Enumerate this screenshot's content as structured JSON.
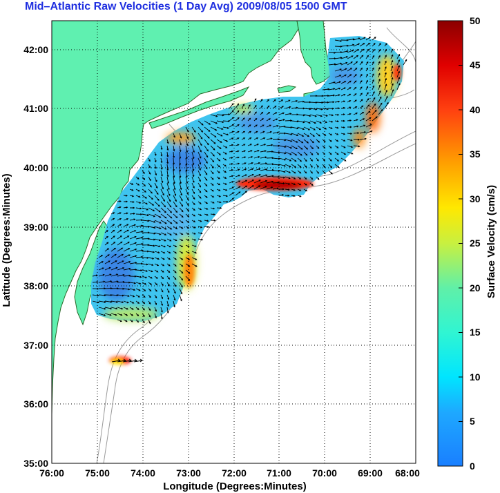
{
  "title": "Mid–Atlantic Raw Velocities (1 Day Avg) 2009/08/05 1500 GMT",
  "xlabel": "Longitude (Degrees:Minutes)",
  "ylabel": "Latitude (Degrees:Minutes)",
  "colorbar_label": "Surface Velocity (cm/s)",
  "x_ticks": [
    "76:00",
    "75:00",
    "74:00",
    "73:00",
    "72:00",
    "71:00",
    "70:00",
    "69:00",
    "68:00"
  ],
  "y_ticks": [
    "35:00",
    "36:00",
    "37:00",
    "38:00",
    "39:00",
    "40:00",
    "41:00",
    "42:00"
  ],
  "colorbar_ticks": [
    "0",
    "5",
    "10",
    "15",
    "20",
    "25",
    "30",
    "35",
    "40",
    "45",
    "50"
  ],
  "colors": {
    "title": "#1f2fe0",
    "land": "#5ff0b0",
    "coast": "#2a6a2a",
    "bathymetry": "#9a9a9a",
    "field_base": "#39c6f0",
    "field_low": "#3a8ae8",
    "field_high": "#ff3010",
    "arrow": "#000000"
  },
  "colormap": "jet",
  "chart_data": {
    "type": "heatmap",
    "title": "Mid–Atlantic Raw Velocities (1 Day Avg) 2009/08/05 1500 GMT",
    "xlabel": "Longitude (Degrees:Minutes)",
    "ylabel": "Latitude (Degrees:Minutes)",
    "xlim": [
      -76,
      -68
    ],
    "ylim": [
      35,
      42.5
    ],
    "colorbar": {
      "label": "Surface Velocity (cm/s)",
      "range": [
        0,
        50
      ]
    },
    "grid": true,
    "hotspots": [
      {
        "lon": -71.0,
        "lat": 39.7,
        "speed": 45
      },
      {
        "lon": -73.1,
        "lat": 38.3,
        "speed": 30
      },
      {
        "lon": -74.3,
        "lat": 36.6,
        "speed": 40
      },
      {
        "lon": -69.2,
        "lat": 40.8,
        "speed": 35
      }
    ]
  }
}
